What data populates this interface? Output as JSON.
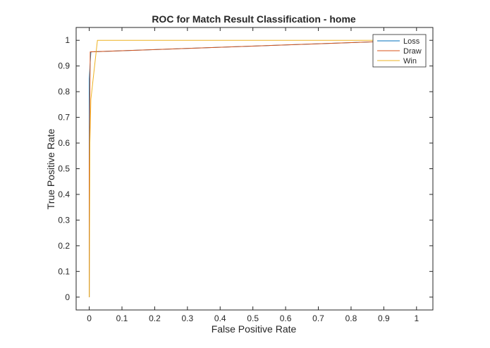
{
  "chart_data": {
    "type": "line",
    "title": "ROC for Match Result Classification - home",
    "xlabel": "False Positive Rate",
    "ylabel": "True Positive Rate",
    "xlim": [
      -0.04,
      1.05
    ],
    "ylim": [
      -0.05,
      1.05
    ],
    "xticks": [
      0,
      0.1,
      0.2,
      0.3,
      0.4,
      0.5,
      0.6,
      0.7,
      0.8,
      0.9,
      1
    ],
    "xtick_labels": [
      "0",
      "0.1",
      "0.2",
      "0.3",
      "0.4",
      "0.5",
      "0.6",
      "0.7",
      "0.8",
      "0.9",
      "1"
    ],
    "yticks": [
      0,
      0.1,
      0.2,
      0.3,
      0.4,
      0.5,
      0.6,
      0.7,
      0.8,
      0.9,
      1
    ],
    "ytick_labels": [
      "0",
      "0.1",
      "0.2",
      "0.3",
      "0.4",
      "0.5",
      "0.6",
      "0.7",
      "0.8",
      "0.9",
      "1"
    ],
    "grid": false,
    "legend_position": "top-right",
    "series": [
      {
        "name": "Loss",
        "color": "#0072BD",
        "x": [
          0,
          0,
          0.005,
          1
        ],
        "y": [
          0,
          0.85,
          0.955,
          1
        ]
      },
      {
        "name": "Draw",
        "color": "#D95319",
        "x": [
          0,
          0,
          0.003,
          1
        ],
        "y": [
          0,
          0.5,
          0.955,
          1
        ]
      },
      {
        "name": "Win",
        "color": "#EDB120",
        "x": [
          0,
          0.002,
          0.005,
          0.025,
          1
        ],
        "y": [
          0,
          0.6,
          0.77,
          1,
          1
        ]
      }
    ]
  }
}
